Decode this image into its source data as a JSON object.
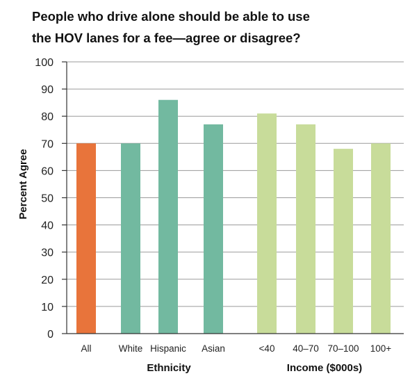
{
  "chart_data": {
    "type": "bar",
    "title_lines": [
      "People who drive alone should be able to use",
      "the HOV lanes for a fee—agree or disagree?"
    ],
    "ylabel": "Percent Agree",
    "ylim": [
      0,
      100
    ],
    "yticks": [
      0,
      10,
      20,
      30,
      40,
      50,
      60,
      70,
      80,
      90,
      100
    ],
    "grid": true,
    "categories": [
      "All",
      "White",
      "Hispanic",
      "Asian",
      "<40",
      "40–70",
      "70–100",
      "100+"
    ],
    "values": [
      70,
      70,
      86,
      77,
      81,
      77,
      68,
      70
    ],
    "groups": [
      {
        "label": "Ethnicity",
        "categories": [
          "White",
          "Hispanic",
          "Asian"
        ]
      },
      {
        "label": "Income ($000s)",
        "categories": [
          "<40",
          "40–70",
          "70–100",
          "100+"
        ]
      }
    ],
    "colors": {
      "All": "#e8743b",
      "White": "#72b9a0",
      "Hispanic": "#72b9a0",
      "Asian": "#72b9a0",
      "<40": "#c8dc9a",
      "40–70": "#c8dc9a",
      "70–100": "#c8dc9a",
      "100+": "#c8dc9a"
    }
  }
}
